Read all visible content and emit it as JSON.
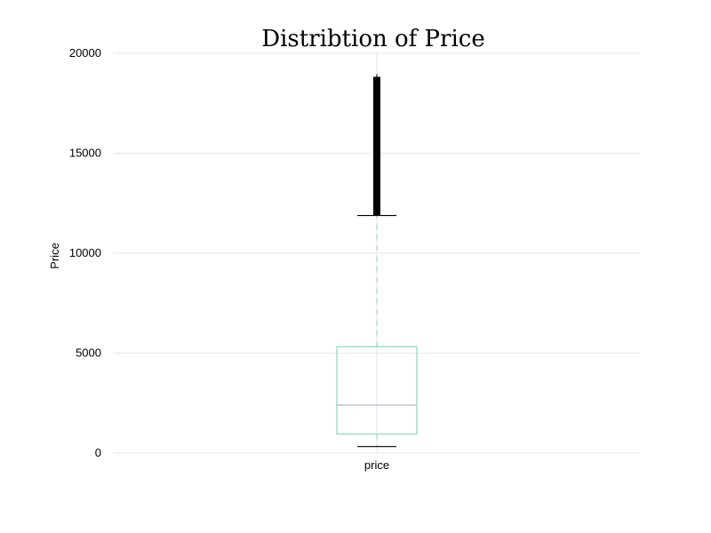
{
  "chart_data": {
    "type": "boxplot",
    "title": "Distribtion of Price",
    "xlabel": "",
    "ylabel": "Price",
    "ylim": [
      0,
      20000
    ],
    "yticks": [
      0,
      5000,
      10000,
      15000,
      20000
    ],
    "ytick_labels": [
      "0",
      "5000",
      "10000",
      "15000",
      "20000"
    ],
    "grid": true,
    "categories": [
      "price"
    ],
    "boxes": [
      {
        "name": "price",
        "whisker_low": 326,
        "q1": 950,
        "median": 2401,
        "q3": 5324,
        "whisker_high": 11886,
        "outlier_min": 11900,
        "outlier_max": 18823
      }
    ],
    "colors": {
      "box": "#8fdcc4",
      "median": "#b3b3d6",
      "whisker": "#8fdcc4",
      "cap": "#000000",
      "outliers": "#000000",
      "grid": "#e6e6e6"
    }
  }
}
